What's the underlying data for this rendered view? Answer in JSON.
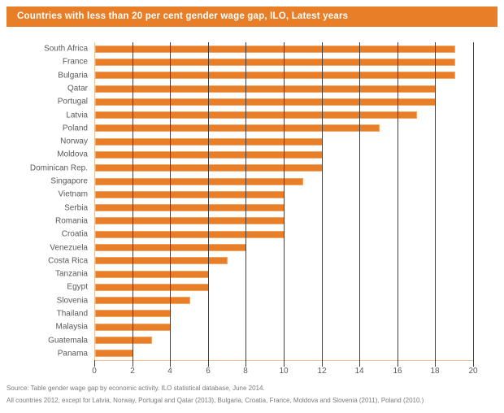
{
  "title": "Countries with less than 20 per cent gender wage gap, ILO, Latest years",
  "source_line1": "Source: Table gender wage gap by economic activity. ILO statistical database, June 2014.",
  "source_line2": "All countries 2012, except for Latvia, Norway, Portugal and Qatar (2013), Bulgaria, Croatia, France, Moldova and Slovenia (2011), Poland (2010.)",
  "colors": {
    "accent_orange": "#E87E27",
    "bar_border": "#F2A667",
    "axis_peach": "#F0BE93",
    "gridline_gray": "#404040",
    "label_gray": "#595959",
    "source_gray": "#7B7B7B",
    "title_text": "#FFFFFF"
  },
  "chart_data": {
    "type": "bar",
    "orientation": "horizontal",
    "title": "Countries with less than 20 per cent gender wage gap, ILO, Latest years",
    "categories": [
      "South Africa",
      "France",
      "Bulgaria",
      "Qatar",
      "Portugal",
      "Latvia",
      "Poland",
      "Norway",
      "Moldova",
      "Dominican Rep.",
      "Singapore",
      "Vietnam",
      "Serbia",
      "Romania",
      "Croatia",
      "Venezuela",
      "Costa Rica",
      "Tanzania",
      "Egypt",
      "Slovenia",
      "Thailand",
      "Malaysia",
      "Guatemala",
      "Panama"
    ],
    "values": [
      19,
      19,
      19,
      18,
      18,
      17,
      15,
      12,
      12,
      12,
      11,
      10,
      10,
      10,
      10,
      8,
      7,
      6,
      6,
      5,
      4,
      4,
      3,
      2
    ],
    "xlabel": "",
    "ylabel": "",
    "xlim": [
      0,
      20
    ],
    "xticks": [
      0,
      2,
      4,
      6,
      8,
      10,
      12,
      14,
      16,
      18,
      20
    ],
    "grid": true,
    "gridlines_over_bars": true,
    "legend": "none"
  }
}
